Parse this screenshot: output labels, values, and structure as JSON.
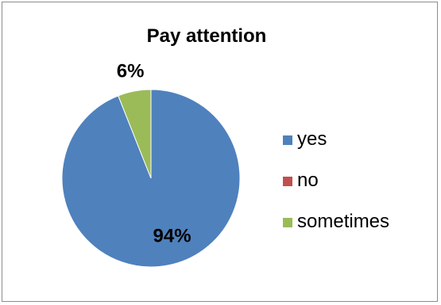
{
  "chart_data": {
    "type": "pie",
    "title": "Pay attention",
    "categories": [
      "yes",
      "no",
      "sometimes"
    ],
    "values": [
      94,
      0,
      6
    ],
    "data_labels": [
      "94%",
      "",
      "6%"
    ],
    "colors": [
      "#4F81BD",
      "#C0504D",
      "#9BBB59"
    ],
    "legend": {
      "position": "right",
      "items": [
        {
          "label": "yes",
          "color": "#4F81BD"
        },
        {
          "label": "no",
          "color": "#C0504D"
        },
        {
          "label": "sometimes",
          "color": "#9BBB59"
        }
      ]
    }
  }
}
